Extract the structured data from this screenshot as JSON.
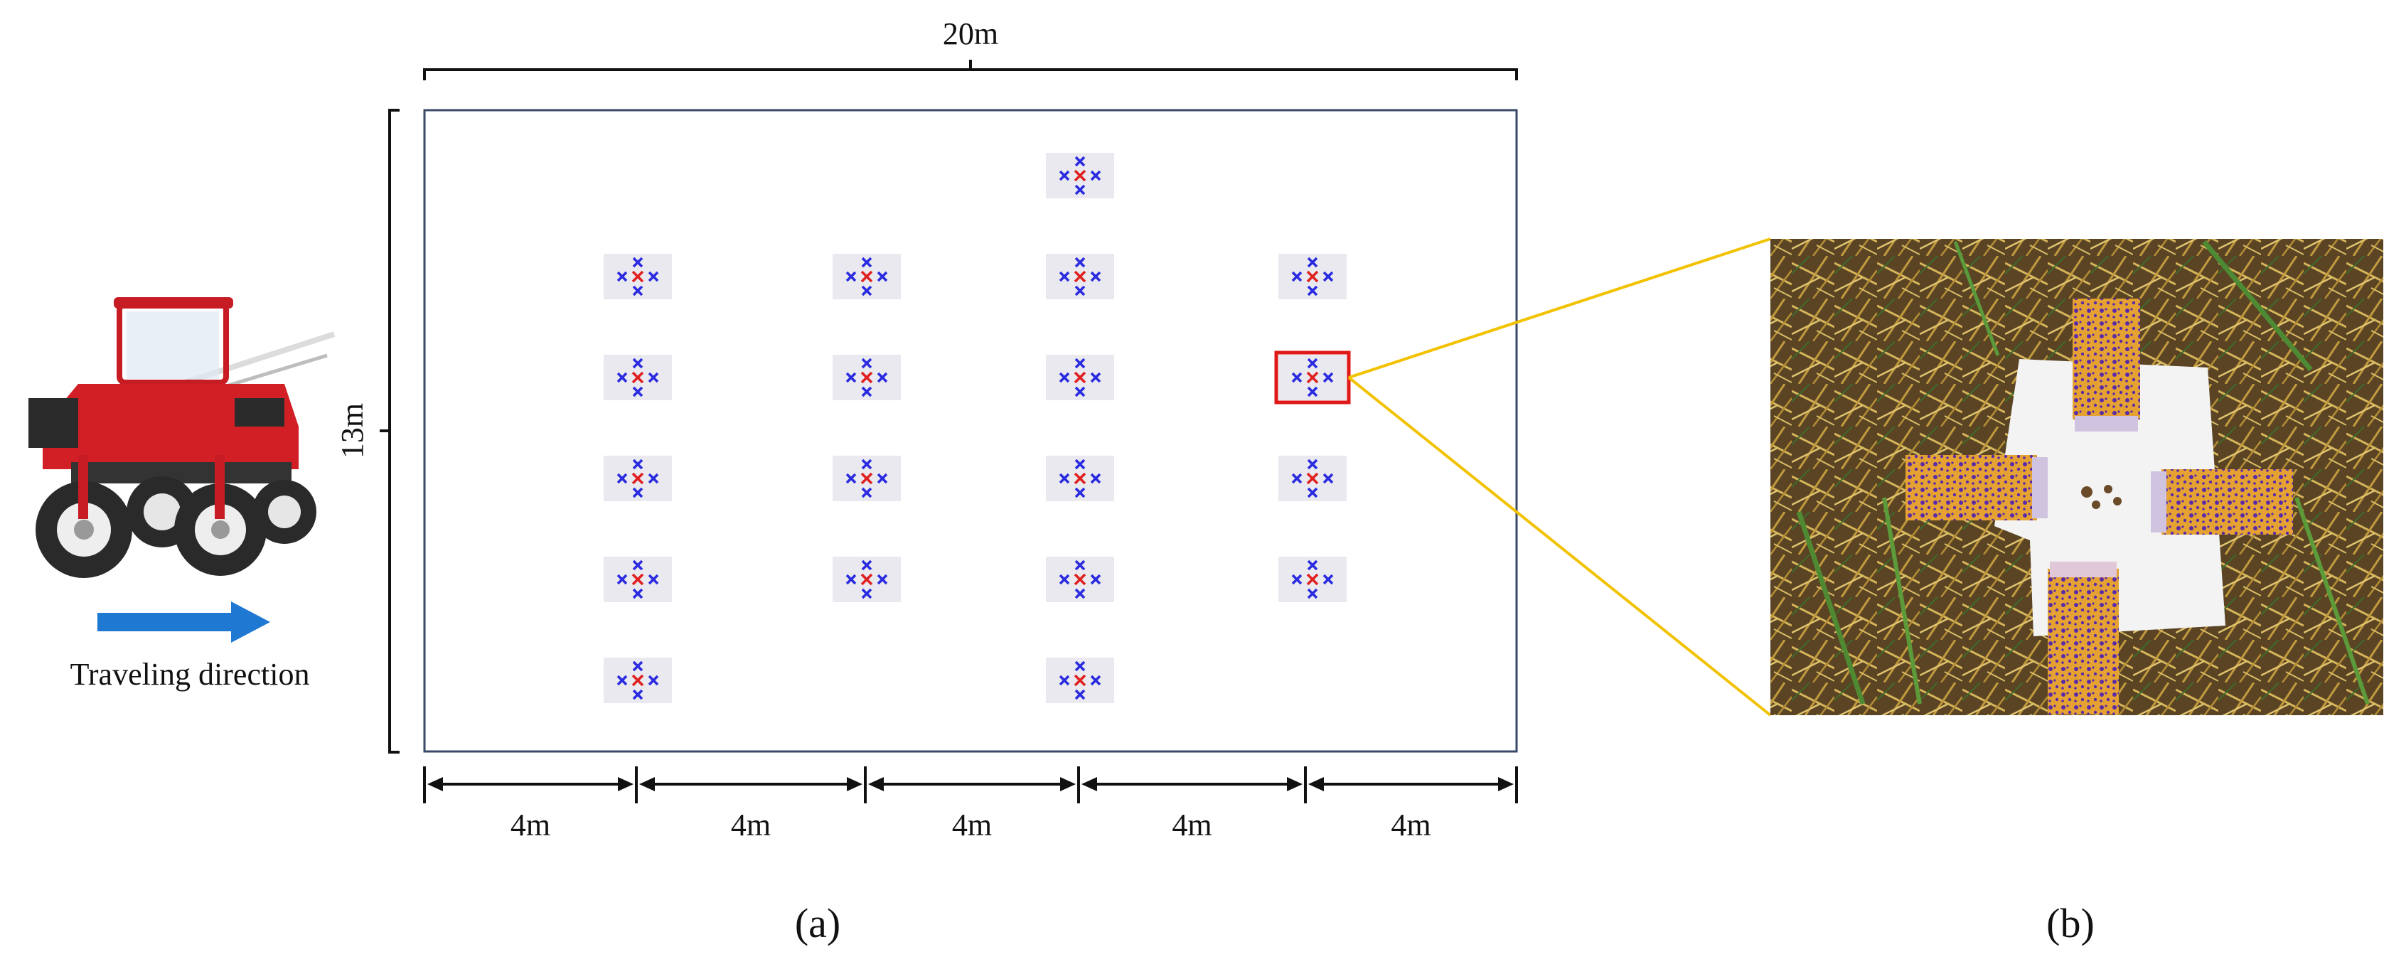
{
  "diagram": {
    "width_label": "20m",
    "height_label": "13m",
    "segment_labels": [
      "4m",
      "4m",
      "4m",
      "4m",
      "4m"
    ],
    "direction_label": "Traveling direction",
    "panel_a_label": "(a)",
    "panel_b_label": "(b)",
    "sampling_grid": {
      "columns": 5,
      "rows": 6,
      "present": [
        [
          false,
          false,
          true,
          false,
          true
        ],
        [
          true,
          true,
          true,
          true,
          true
        ],
        [
          true,
          true,
          true,
          true,
          true
        ],
        [
          true,
          true,
          true,
          true,
          true
        ],
        [
          true,
          true,
          true,
          true,
          true
        ],
        [
          true,
          false,
          true,
          false,
          false
        ]
      ],
      "highlighted": [
        2,
        3
      ]
    },
    "colors": {
      "field_border": "#3a4a66",
      "marker_bg": "#e9e9ef",
      "marker_blue": "#2a2ae0",
      "marker_red": "#e02020",
      "highlight": "#e01818",
      "zoom_lines": "#f2c200",
      "arrow": "#1f78d1",
      "tractor_body": "#d21f26",
      "soil": "#5a4424",
      "straw": "#c9a548",
      "card": "#f3f3f3",
      "paper": "#e5a233",
      "droplets": "#5a2aa8"
    }
  }
}
